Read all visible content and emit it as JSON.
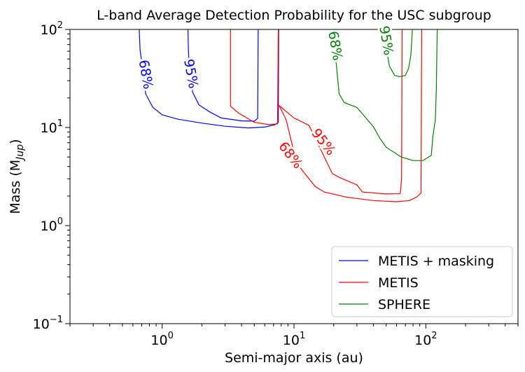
{
  "chart_data": {
    "type": "line",
    "title": "L-band Average Detection Probability for the USC subgroup",
    "xlabel": "Semi-major axis (au)",
    "ylabel": "Mass (M",
    "ylabel_sub": "Jup",
    "ylabel_close": ")",
    "xscale": "log",
    "yscale": "log",
    "xlim": [
      0.2,
      500
    ],
    "ylim": [
      0.1,
      100
    ],
    "x_ticks": [
      {
        "value": 1,
        "base": "10",
        "exp": "0"
      },
      {
        "value": 10,
        "base": "10",
        "exp": "1"
      },
      {
        "value": 100,
        "base": "10",
        "exp": "2"
      }
    ],
    "y_ticks": [
      {
        "value": 0.1,
        "base": "10",
        "exp": "−1"
      },
      {
        "value": 1,
        "base": "10",
        "exp": "0"
      },
      {
        "value": 10,
        "base": "10",
        "exp": "1"
      },
      {
        "value": 100,
        "base": "10",
        "exp": "2"
      }
    ],
    "legend_position": "lower-right",
    "series": [
      {
        "name": "METIS + masking",
        "color": "#0000ff",
        "contours": [
          {
            "level": "68%",
            "label_at": [
              0.75,
              34.7
            ],
            "label_angle": 80,
            "points": [
              [
                0.67,
                100
              ],
              [
                0.68,
                62
              ],
              [
                0.7,
                47
              ],
              [
                0.75,
                22
              ],
              [
                0.85,
                16
              ],
              [
                1.0,
                13.5
              ],
              [
                1.3,
                12.2
              ],
              [
                2.0,
                11.1
              ],
              [
                3.0,
                10.3
              ],
              [
                4.5,
                9.9
              ],
              [
                6.0,
                10.1
              ],
              [
                7.2,
                10.7
              ],
              [
                7.6,
                11.3
              ],
              [
                7.65,
                100
              ]
            ]
          },
          {
            "level": "95%",
            "label_at": [
              1.65,
              35.3
            ],
            "label_angle": 80,
            "points": [
              [
                1.57,
                100
              ],
              [
                1.58,
                62
              ],
              [
                1.6,
                47
              ],
              [
                1.7,
                23
              ],
              [
                1.9,
                17
              ],
              [
                2.3,
                14.4
              ],
              [
                2.8,
                12.5
              ],
              [
                4.0,
                11.7
              ],
              [
                5.0,
                11.6
              ],
              [
                5.3,
                12.4
              ],
              [
                5.35,
                100
              ]
            ]
          }
        ]
      },
      {
        "name": "METIS",
        "color": "#ff0000",
        "contours": [
          {
            "level": "68%",
            "label_at": [
              9.4,
              5.2
            ],
            "label_angle": 52,
            "points": [
              [
                3.3,
                100
              ],
              [
                3.3,
                16.5
              ],
              [
                3.8,
                14
              ],
              [
                5.0,
                11.3
              ],
              [
                6.5,
                10.7
              ],
              [
                7.5,
                10.9
              ],
              [
                7.6,
                100
              ]
            ]
          },
          {
            "level": "68%",
            "label_at": [
              9.4,
              5.2
            ],
            "label_angle": 52,
            "points": [
              [
                7.7,
                16.8
              ],
              [
                8.7,
                12.1
              ],
              [
                10.5,
                4.3
              ],
              [
                12.5,
                3.2
              ],
              [
                14.5,
                2.5
              ],
              [
                17,
                2.2
              ],
              [
                25,
                1.95
              ],
              [
                40,
                1.8
              ],
              [
                60,
                1.75
              ],
              [
                75,
                1.8
              ],
              [
                85,
                1.95
              ],
              [
                92,
                2.15
              ],
              [
                93,
                100
              ]
            ]
          },
          {
            "level": "95%",
            "label_at": [
              16.7,
              7.1
            ],
            "label_angle": 52,
            "points": [
              [
                7.7,
                16.8
              ],
              [
                10,
                12.5
              ],
              [
                13,
                10.5
              ],
              [
                19.5,
                3.4
              ],
              [
                22,
                3.1
              ],
              [
                30,
                2.6
              ],
              [
                33,
                2.2
              ],
              [
                50,
                2.1
              ],
              [
                64,
                2.12
              ],
              [
                65.5,
                3.0
              ],
              [
                66,
                100
              ]
            ]
          }
        ]
      },
      {
        "name": "SPHERE",
        "color": "#008000",
        "contours": [
          {
            "level": "68%",
            "label_at": [
              20.5,
              68
            ],
            "label_angle": 80,
            "points": [
              [
                20,
                100
              ],
              [
                20,
                77
              ],
              [
                21,
                42
              ],
              [
                22,
                22
              ],
              [
                24,
                18
              ],
              [
                30,
                16
              ],
              [
                40,
                10.2
              ],
              [
                45,
                7.7
              ],
              [
                50,
                6.3
              ],
              [
                65,
                5.0
              ],
              [
                80,
                4.6
              ],
              [
                95,
                4.6
              ],
              [
                110,
                5.2
              ],
              [
                113,
                8
              ],
              [
                118,
                12
              ],
              [
                120,
                24
              ],
              [
                122,
                100
              ]
            ]
          },
          {
            "level": "95%",
            "label_at": [
              50,
              77
            ],
            "label_angle": 80,
            "points": [
              [
                47,
                100
              ],
              [
                48,
                90
              ],
              [
                53,
                42
              ],
              [
                58,
                34
              ],
              [
                63,
                33
              ],
              [
                70,
                34
              ],
              [
                74,
                40
              ],
              [
                77,
                55
              ],
              [
                79,
                100
              ]
            ]
          }
        ]
      }
    ]
  }
}
